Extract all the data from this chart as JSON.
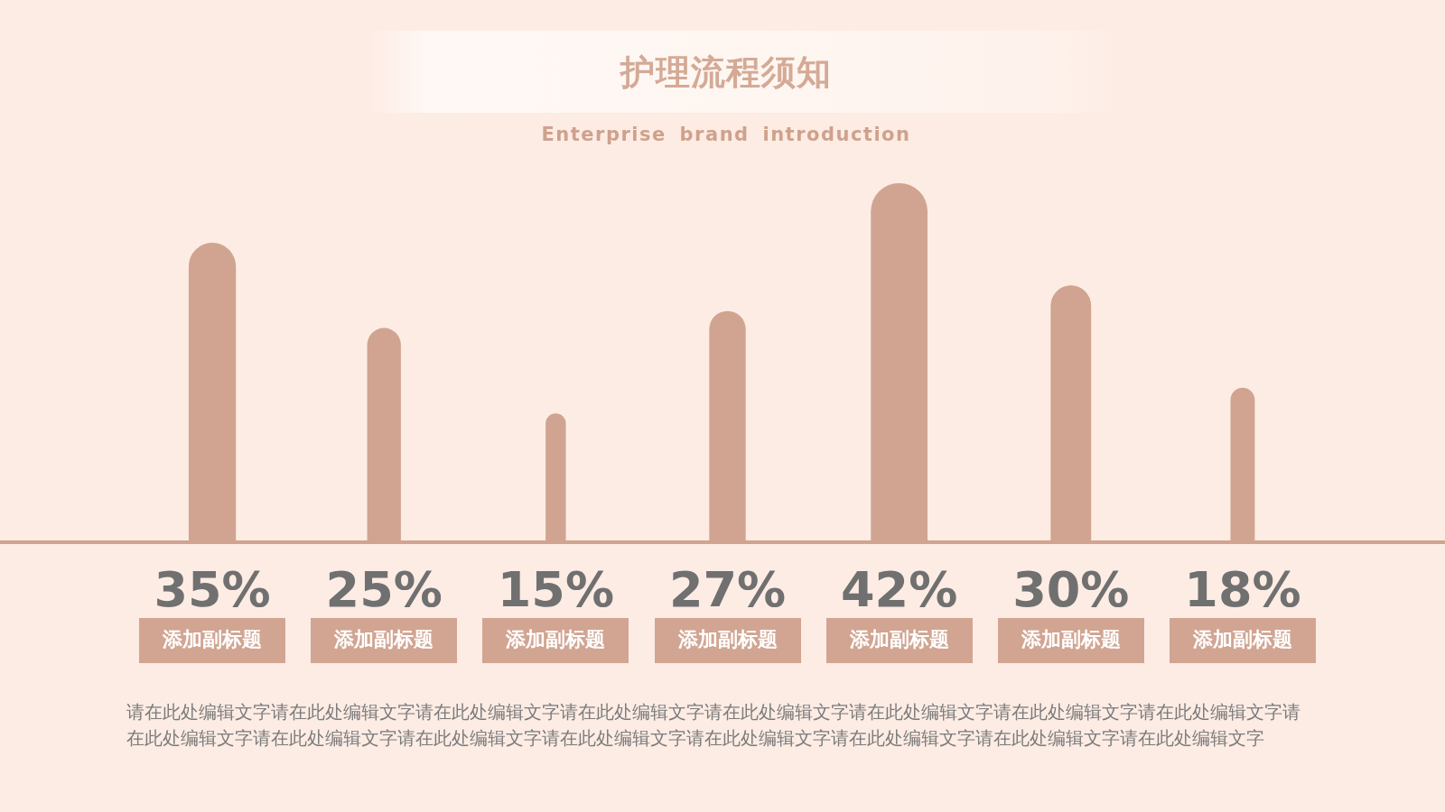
{
  "chart_data": {
    "type": "bar",
    "title": "护理流程须知",
    "subtitle": "Enterprise brand introduction",
    "categories": [
      "添加副标题",
      "添加副标题",
      "添加副标题",
      "添加副标题",
      "添加副标题",
      "添加副标题",
      "添加副标题"
    ],
    "values": [
      35,
      25,
      15,
      27,
      42,
      30,
      18
    ],
    "value_labels": [
      "35%",
      "25%",
      "15%",
      "27%",
      "42%",
      "30%",
      "18%"
    ],
    "color": "#d0a490",
    "annotations": [
      "请在此处编辑文字请在此处编辑文字请在此处编辑文字请在此处编辑文字请在此处编辑文字请在此处编辑文字请在此处编辑文字请在此处编辑文字请在此处编辑文字请在此处编辑文字请在此处编辑文字请在此处编辑文字请在此处编辑文字请在此处编辑文字请在此处编辑文字请在此处编辑文字"
    ]
  }
}
